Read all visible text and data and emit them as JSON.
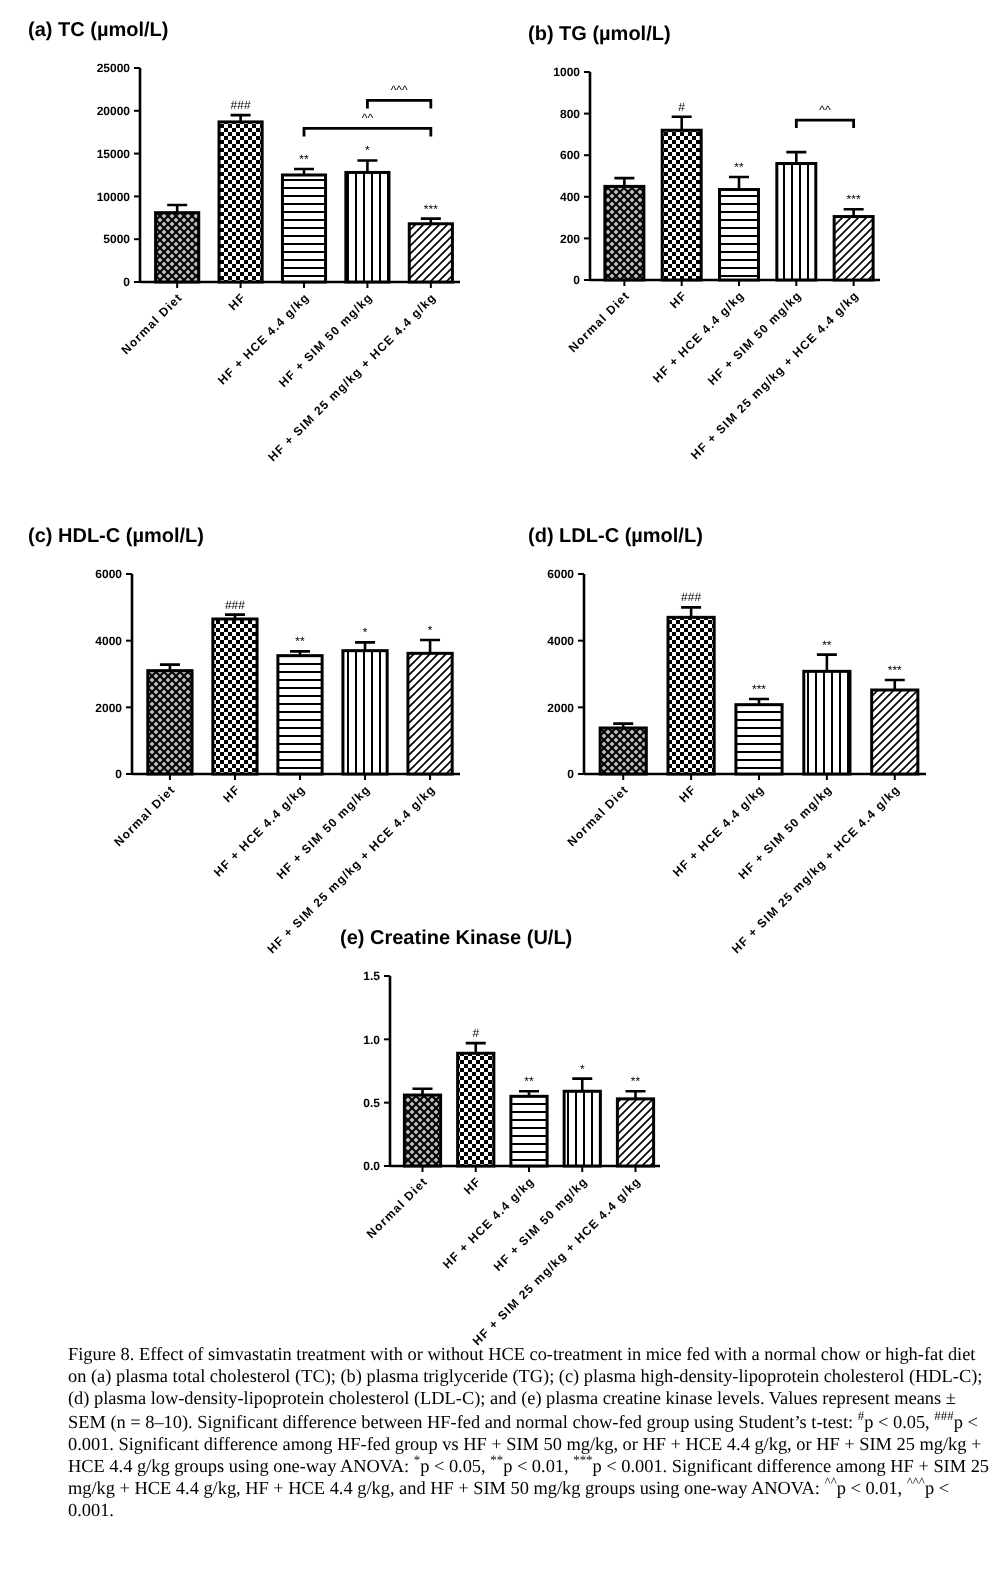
{
  "chart_data": [
    {
      "type": "bar",
      "title": "(a)  TC (µmol/L)",
      "categories": [
        "Normal Diet",
        "HF",
        "HF + HCE 4.4 g/kg",
        "HF + SIM 50 mg/kg",
        "HF + SIM 25 mg/kg + HCE 4.4 g/kg"
      ],
      "values": [
        8100,
        18700,
        12500,
        12800,
        6800
      ],
      "errors": [
        900,
        800,
        700,
        1400,
        600
      ],
      "value_labels": [
        null,
        "###",
        "**",
        "*",
        "***"
      ],
      "annotations": [
        "^^",
        "^^^"
      ],
      "ylim": [
        0,
        25000
      ],
      "yticks": [
        0,
        5000,
        10000,
        15000,
        20000,
        25000
      ]
    },
    {
      "type": "bar",
      "title": "(b)  TG (µmol/L)",
      "categories": [
        "Normal Diet",
        "HF",
        "HF + HCE 4.4 g/kg",
        "HF + SIM 50 mg/kg",
        "HF + SIM 25 mg/kg + HCE 4.4 g/kg"
      ],
      "values": [
        450,
        720,
        435,
        560,
        305
      ],
      "errors": [
        40,
        65,
        60,
        55,
        35
      ],
      "value_labels": [
        null,
        "#",
        "**",
        null,
        "***"
      ],
      "annotations": [
        "^^"
      ],
      "ylim": [
        0,
        1000
      ],
      "yticks": [
        0,
        200,
        400,
        600,
        800,
        1000
      ]
    },
    {
      "type": "bar",
      "title": "(c)  HDL-C (µmol/L)",
      "categories": [
        "Normal Diet",
        "HF",
        "HF + HCE 4.4 g/kg",
        "HF + SIM 50 mg/kg",
        "HF + SIM 25 mg/kg + HCE 4.4 g/kg"
      ],
      "values": [
        3100,
        4650,
        3550,
        3700,
        3620
      ],
      "errors": [
        180,
        130,
        130,
        250,
        400
      ],
      "value_labels": [
        null,
        "###",
        "**",
        "*",
        "*"
      ],
      "ylim": [
        0,
        6000
      ],
      "yticks": [
        0,
        2000,
        4000,
        6000
      ]
    },
    {
      "type": "bar",
      "title": "(d)  LDL-C (µmol/L)",
      "categories": [
        "Normal Diet",
        "HF",
        "HF + HCE 4.4 g/kg",
        "HF + SIM 50 mg/kg",
        "HF + SIM 25 mg/kg + HCE 4.4 g/kg"
      ],
      "values": [
        1380,
        4700,
        2080,
        3080,
        2520
      ],
      "errors": [
        130,
        300,
        170,
        500,
        300
      ],
      "value_labels": [
        null,
        "###",
        "***",
        "**",
        "***"
      ],
      "ylim": [
        0,
        6000
      ],
      "yticks": [
        0,
        2000,
        4000,
        6000
      ]
    },
    {
      "type": "bar",
      "title": "(e)  Creatine Kinase (U/L)",
      "categories": [
        "Normal Diet",
        "HF",
        "HF + HCE 4.4 g/kg",
        "HF + SIM 50 mg/kg",
        "HF + SIM 25 mg/kg + HCE 4.4 g/kg"
      ],
      "values": [
        0.56,
        0.89,
        0.55,
        0.59,
        0.53
      ],
      "errors": [
        0.05,
        0.08,
        0.04,
        0.1,
        0.06
      ],
      "value_labels": [
        null,
        "#",
        "**",
        "*",
        "**"
      ],
      "ylim": [
        0,
        1.5
      ],
      "yticks": [
        {
          "value": 0,
          "label": "0.0"
        },
        {
          "value": 0.5,
          "label": "0.5"
        },
        {
          "value": 1,
          "label": "1.0"
        },
        {
          "value": 1.5,
          "label": "1.5"
        }
      ]
    },
    {
      "type": "other",
      "annotations": [
        "Figure 8.  Effect of simvastatin treatment with or without HCE co-treatment in mice fed with a normal chow or high-fat diet on (a) plasma total cholesterol (TC); (b) plasma triglyceride (TG); (c) plasma high-density-lipoprotein cholesterol (HDL-C); (d) plasma low-density-lipoprotein cholesterol (LDL-C); and (e) plasma creatine kinase levels. Values represent means ± SEM (n = 8–10). Significant difference between HF-fed and normal chow-fed group using Student’s t-test: $^{#}$p < 0.05, $^{###}$p < 0.001. Significant difference among HF-fed group vs HF + SIM 50 mg/kg, or HF + HCE 4.4 g/kg, or HF + SIM 25 mg/kg + HCE 4.4 g/kg groups using one-way ANOVA: $^{*}$p < 0.05, $^{**}$p < 0.01, $^{***}$p < 0.001. Significant difference among HF + SIM 25 mg/kg + HCE 4.4 g/kg, HF + HCE 4.4 g/kg, and HF + SIM 50 mg/kg groups using one-way ANOVA: $^{^^}$p < 0.01, $^{^^^}$p < 0.001."
      ]
    }
  ]
}
